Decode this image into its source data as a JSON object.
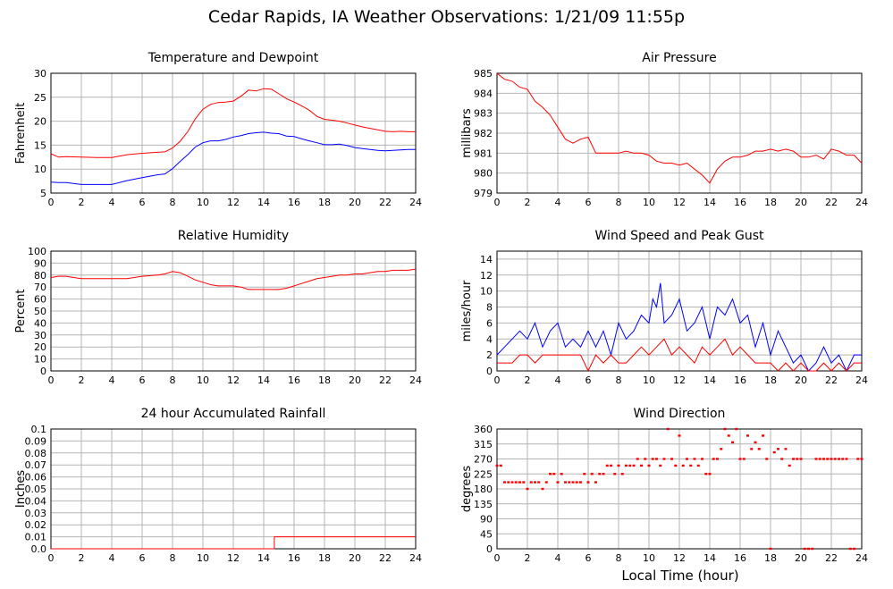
{
  "title": "Cedar Rapids, IA Weather Observations: 1/21/09 11:55p",
  "xlabel_bottom": "Local Time (hour)",
  "colors": {
    "red": "#ff0000",
    "blue": "#0000ff",
    "grid": "#b4b4b4"
  },
  "chart_data": [
    {
      "type": "line",
      "title": "Temperature and Dewpoint",
      "ylabel": "Fahrenheit",
      "xlim": [
        0,
        24
      ],
      "ylim": [
        5,
        30
      ],
      "xticks": [
        0,
        2,
        4,
        6,
        8,
        10,
        12,
        14,
        16,
        18,
        20,
        22,
        24
      ],
      "yticks": [
        5,
        10,
        15,
        20,
        25,
        30
      ],
      "grid": true,
      "series": [
        {
          "color": "#ff0000",
          "x": [
            0,
            0.5,
            1,
            2,
            3,
            4,
            5,
            6,
            7,
            7.5,
            8,
            8.5,
            9,
            9.5,
            10,
            10.5,
            11,
            11.5,
            12,
            12.5,
            13,
            13.5,
            14,
            14.5,
            15,
            15.5,
            16,
            16.5,
            17,
            17.5,
            18,
            18.5,
            19,
            19.5,
            20,
            20.5,
            21,
            21.5,
            22,
            22.5,
            23,
            23.5,
            24
          ],
          "y": [
            13.2,
            12.5,
            12.6,
            12.5,
            12.4,
            12.4,
            13.0,
            13.3,
            13.5,
            13.6,
            14.4,
            15.8,
            17.8,
            20.5,
            22.5,
            23.5,
            23.9,
            24.0,
            24.2,
            25.2,
            26.5,
            26.3,
            26.8,
            26.7,
            25.7,
            24.7,
            24.0,
            23.2,
            22.3,
            21.0,
            20.4,
            20.2,
            20.0,
            19.6,
            19.2,
            18.8,
            18.5,
            18.2,
            17.9,
            17.8,
            17.9,
            17.8,
            17.8
          ]
        },
        {
          "color": "#0000ff",
          "x": [
            0,
            0.5,
            1,
            2,
            3,
            4,
            5,
            6,
            7,
            7.5,
            8,
            8.5,
            9,
            9.5,
            10,
            10.5,
            11,
            11.5,
            12,
            12.5,
            13,
            13.5,
            14,
            14.5,
            15,
            15.5,
            16,
            16.5,
            17,
            17.5,
            18,
            18.5,
            19,
            19.5,
            20,
            20.5,
            21,
            21.5,
            22,
            22.5,
            23,
            23.5,
            24
          ],
          "y": [
            7.3,
            7.2,
            7.2,
            6.8,
            6.8,
            6.8,
            7.6,
            8.2,
            8.8,
            9.0,
            10.1,
            11.6,
            13.0,
            14.6,
            15.5,
            15.9,
            15.9,
            16.2,
            16.7,
            17.0,
            17.4,
            17.6,
            17.7,
            17.5,
            17.4,
            16.9,
            16.8,
            16.3,
            15.9,
            15.5,
            15.1,
            15.1,
            15.2,
            14.9,
            14.5,
            14.3,
            14.1,
            13.9,
            13.8,
            13.9,
            14.0,
            14.1,
            14.1
          ]
        }
      ]
    },
    {
      "type": "line",
      "title": "Air Pressure",
      "ylabel": "millibars",
      "xlim": [
        0,
        24
      ],
      "ylim": [
        979,
        985
      ],
      "xticks": [
        0,
        2,
        4,
        6,
        8,
        10,
        12,
        14,
        16,
        18,
        20,
        22,
        24
      ],
      "yticks": [
        979,
        980,
        981,
        982,
        983,
        984,
        985
      ],
      "grid": true,
      "series": [
        {
          "color": "#ff0000",
          "x": [
            0,
            0.5,
            1,
            1.5,
            2,
            2.5,
            3,
            3.5,
            4,
            4.5,
            5,
            5.5,
            6,
            6.5,
            7,
            7.5,
            8,
            8.5,
            9,
            9.5,
            10,
            10.5,
            11,
            11.5,
            12,
            12.5,
            13,
            13.5,
            14,
            14.5,
            15,
            15.5,
            16,
            16.5,
            17,
            17.5,
            18,
            18.5,
            19,
            19.5,
            20,
            20.5,
            21,
            21.5,
            22,
            22.5,
            23,
            23.5,
            24
          ],
          "y": [
            985,
            984.7,
            984.6,
            984.3,
            984.2,
            983.6,
            983.3,
            982.9,
            982.3,
            981.7,
            981.5,
            981.7,
            981.8,
            981.0,
            981.0,
            981.0,
            981.0,
            981.1,
            981.0,
            981.0,
            980.9,
            980.6,
            980.5,
            980.5,
            980.4,
            980.5,
            980.2,
            979.9,
            979.5,
            980.2,
            980.6,
            980.8,
            980.8,
            980.9,
            981.1,
            981.1,
            981.2,
            981.1,
            981.2,
            981.1,
            980.8,
            980.8,
            980.9,
            980.7,
            981.2,
            981.1,
            980.9,
            980.9,
            980.5
          ]
        }
      ]
    },
    {
      "type": "line",
      "title": "Relative Humidity",
      "ylabel": "Percent",
      "xlim": [
        0,
        24
      ],
      "ylim": [
        0,
        100
      ],
      "xticks": [
        0,
        2,
        4,
        6,
        8,
        10,
        12,
        14,
        16,
        18,
        20,
        22,
        24
      ],
      "yticks": [
        0,
        10,
        20,
        30,
        40,
        50,
        60,
        70,
        80,
        90,
        100
      ],
      "grid": true,
      "series": [
        {
          "color": "#ff0000",
          "x": [
            0,
            0.5,
            1,
            1.5,
            2,
            3,
            4,
            5,
            6,
            7,
            7.5,
            8,
            8.5,
            9,
            9.5,
            10,
            10.5,
            11,
            11.5,
            12,
            12.5,
            13,
            13.5,
            14,
            14.5,
            15,
            15.5,
            16,
            16.5,
            17,
            17.5,
            18,
            18.5,
            19,
            19.5,
            20,
            20.5,
            21,
            21.5,
            22,
            22.5,
            23,
            23.5,
            24
          ],
          "y": [
            78,
            79,
            79,
            78,
            77,
            77,
            77,
            77,
            79,
            80,
            81,
            83,
            82,
            79,
            76,
            74,
            72,
            71,
            71,
            71,
            70,
            68,
            68,
            68,
            68,
            68,
            69,
            71,
            73,
            75,
            77,
            78,
            79,
            80,
            80,
            81,
            81,
            82,
            83,
            83,
            84,
            84,
            84,
            85
          ]
        }
      ]
    },
    {
      "type": "line",
      "title": "Wind Speed and Peak Gust",
      "ylabel": "miles/hour",
      "xlim": [
        0,
        24
      ],
      "ylim": [
        0,
        15
      ],
      "xticks": [
        0,
        2,
        4,
        6,
        8,
        10,
        12,
        14,
        16,
        18,
        20,
        22,
        24
      ],
      "yticks": [
        0,
        2,
        4,
        6,
        8,
        10,
        12,
        14
      ],
      "grid": true,
      "series": [
        {
          "color": "#0000ff",
          "x": [
            0,
            0.5,
            1,
            1.5,
            2,
            2.5,
            3,
            3.5,
            4,
            4.5,
            5,
            5.5,
            6,
            6.5,
            7,
            7.5,
            8,
            8.5,
            9,
            9.5,
            10,
            10.25,
            10.5,
            10.75,
            11,
            11.5,
            12,
            12.5,
            13,
            13.5,
            14,
            14.5,
            15,
            15.5,
            16,
            16.5,
            17,
            17.5,
            18,
            18.5,
            19,
            19.5,
            20,
            20.5,
            21,
            21.5,
            22,
            22.5,
            23,
            23.5,
            24
          ],
          "y": [
            2,
            3,
            4,
            5,
            4,
            6,
            3,
            5,
            6,
            3,
            4,
            3,
            5,
            3,
            5,
            2,
            6,
            4,
            5,
            7,
            6,
            9,
            8,
            11,
            6,
            7,
            9,
            5,
            6,
            8,
            4,
            8,
            7,
            9,
            6,
            7,
            3,
            6,
            2,
            5,
            3,
            1,
            2,
            0,
            1,
            3,
            1,
            2,
            0,
            2,
            2
          ]
        },
        {
          "color": "#ff0000",
          "x": [
            0,
            0.5,
            1,
            1.5,
            2,
            2.5,
            3,
            3.5,
            4,
            4.5,
            5,
            5.5,
            6,
            6.5,
            7,
            7.5,
            8,
            8.5,
            9,
            9.5,
            10,
            10.5,
            11,
            11.5,
            12,
            12.5,
            13,
            13.5,
            14,
            14.5,
            15,
            15.5,
            16,
            16.5,
            17,
            17.5,
            18,
            18.5,
            19,
            19.5,
            20,
            20.5,
            21,
            21.5,
            22,
            22.5,
            23,
            23.5,
            24
          ],
          "y": [
            1,
            1,
            1,
            2,
            2,
            1,
            2,
            2,
            2,
            2,
            2,
            2,
            0,
            2,
            1,
            2,
            1,
            1,
            2,
            3,
            2,
            3,
            4,
            2,
            3,
            2,
            1,
            3,
            2,
            3,
            4,
            2,
            3,
            2,
            1,
            1,
            1,
            0,
            1,
            0,
            1,
            0,
            0,
            1,
            0,
            1,
            0,
            1,
            1
          ]
        }
      ]
    },
    {
      "type": "line",
      "title": "24 hour Accumulated Rainfall",
      "ylabel": "Inches",
      "xlim": [
        0,
        24
      ],
      "ylim": [
        0,
        0.1
      ],
      "xticks": [
        0,
        2,
        4,
        6,
        8,
        10,
        12,
        14,
        16,
        18,
        20,
        22,
        24
      ],
      "yticks": [
        "0.0",
        "0.01",
        "0.02",
        "0.03",
        "0.04",
        "0.05",
        "0.06",
        "0.07",
        "0.08",
        "0.09",
        "0.1"
      ],
      "grid": true,
      "series": [
        {
          "color": "#ff0000",
          "x": [
            0,
            14.7,
            14.7,
            24
          ],
          "y": [
            0,
            0,
            0.01,
            0.01
          ]
        }
      ]
    },
    {
      "type": "scatter",
      "title": "Wind Direction",
      "ylabel": "degrees",
      "xlabel": "Local Time (hour)",
      "xlim": [
        0,
        24
      ],
      "ylim": [
        0,
        360
      ],
      "xticks": [
        0,
        2,
        4,
        6,
        8,
        10,
        12,
        14,
        16,
        18,
        20,
        22,
        24
      ],
      "yticks": [
        0,
        45,
        90,
        135,
        180,
        225,
        270,
        315,
        360
      ],
      "grid": true,
      "series": [
        {
          "color": "#ff0000",
          "x": [
            0,
            0.25,
            0.5,
            0.75,
            1,
            1.25,
            1.5,
            1.75,
            2,
            2.25,
            2.5,
            2.75,
            3,
            3.25,
            3.5,
            3.75,
            4,
            4.25,
            4.5,
            4.75,
            5,
            5.25,
            5.5,
            5.75,
            6,
            6.25,
            6.5,
            6.75,
            7,
            7.25,
            7.5,
            7.75,
            8,
            8.25,
            8.5,
            8.75,
            9,
            9.25,
            9.5,
            9.75,
            10,
            10.25,
            10.5,
            10.75,
            11,
            11.25,
            11.5,
            11.75,
            12,
            12.25,
            12.5,
            12.75,
            13,
            13.25,
            13.5,
            13.75,
            14,
            14.25,
            14.5,
            14.75,
            15,
            15.25,
            15.5,
            15.75,
            16,
            16.25,
            16.5,
            16.75,
            17,
            17.25,
            17.5,
            17.75,
            18,
            18.25,
            18.5,
            18.75,
            19,
            19.25,
            19.5,
            19.75,
            20,
            20.25,
            20.5,
            20.75,
            21,
            21.25,
            21.5,
            21.75,
            22,
            22.25,
            22.5,
            22.75,
            23,
            23.25,
            23.5,
            23.75,
            24
          ],
          "y": [
            250,
            250,
            200,
            200,
            200,
            200,
            200,
            200,
            180,
            200,
            200,
            200,
            180,
            200,
            225,
            225,
            200,
            225,
            200,
            200,
            200,
            200,
            200,
            225,
            200,
            225,
            200,
            225,
            225,
            250,
            250,
            225,
            250,
            225,
            250,
            250,
            250,
            270,
            250,
            270,
            250,
            270,
            270,
            250,
            270,
            360,
            270,
            250,
            340,
            250,
            270,
            250,
            270,
            250,
            270,
            225,
            225,
            270,
            270,
            300,
            360,
            340,
            320,
            360,
            270,
            270,
            340,
            300,
            320,
            300,
            340,
            270,
            0,
            290,
            300,
            270,
            300,
            250,
            270,
            270,
            270,
            0,
            0,
            0,
            270,
            270,
            270,
            270,
            270,
            270,
            270,
            270,
            270,
            0,
            0,
            270,
            270
          ]
        }
      ]
    }
  ]
}
